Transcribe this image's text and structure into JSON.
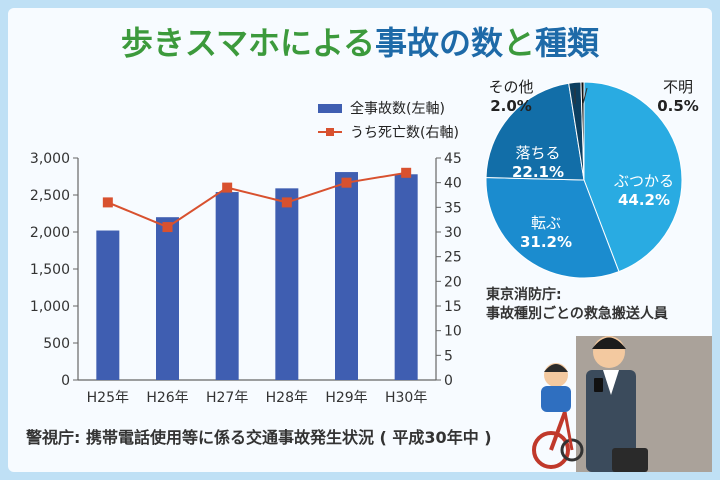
{
  "header": {
    "title_part1": "歩きスマホによる",
    "title_part2": "事故の数",
    "title_part3": "と",
    "title_part4": "種類"
  },
  "chart_data": [
    {
      "type": "bar",
      "categories": [
        "H25年",
        "H26年",
        "H27年",
        "H28年",
        "H29年",
        "H30年"
      ],
      "series": [
        {
          "name": "全事故数(左軸)",
          "type": "bar",
          "axis": "left",
          "values": [
            2020,
            2200,
            2540,
            2590,
            2810,
            2780
          ]
        },
        {
          "name": "うち死亡数(右軸)",
          "type": "line",
          "axis": "right",
          "values": [
            36,
            31,
            39,
            36,
            40,
            42
          ]
        }
      ],
      "left_ylim": [
        0,
        3000
      ],
      "left_ticks": [
        "0",
        "500",
        "1,000",
        "1,500",
        "2,000",
        "2,500",
        "3,000"
      ],
      "right_ylim": [
        0,
        45
      ],
      "right_ticks": [
        "0",
        "5",
        "10",
        "15",
        "20",
        "25",
        "30",
        "35",
        "40",
        "45"
      ],
      "legend": "top",
      "grid": false,
      "colors": {
        "bar": "#3f5eb1",
        "line": "#d8512f"
      }
    },
    {
      "type": "pie",
      "slices": [
        {
          "label": "ぶつかる",
          "value": 44.2,
          "value_text": "44.2%",
          "color": "#29abe2"
        },
        {
          "label": "転ぶ",
          "value": 31.2,
          "value_text": "31.2%",
          "color": "#1b8ccf"
        },
        {
          "label": "落ちる",
          "value": 22.1,
          "value_text": "22.1%",
          "color": "#126ea8"
        },
        {
          "label": "その他",
          "value": 2.0,
          "value_text": "2.0%",
          "color": "#0c3f60"
        },
        {
          "label": "不明",
          "value": 0.5,
          "value_text": "0.5%",
          "color": "#111111"
        }
      ]
    }
  ],
  "sources": {
    "bottom": "警視庁: 携帯電話使用等に係る交通事故発生状況 ( 平成30年中 )",
    "right_line1": "東京消防庁:",
    "right_line2": "事故種別ごとの救急搬送人員"
  }
}
